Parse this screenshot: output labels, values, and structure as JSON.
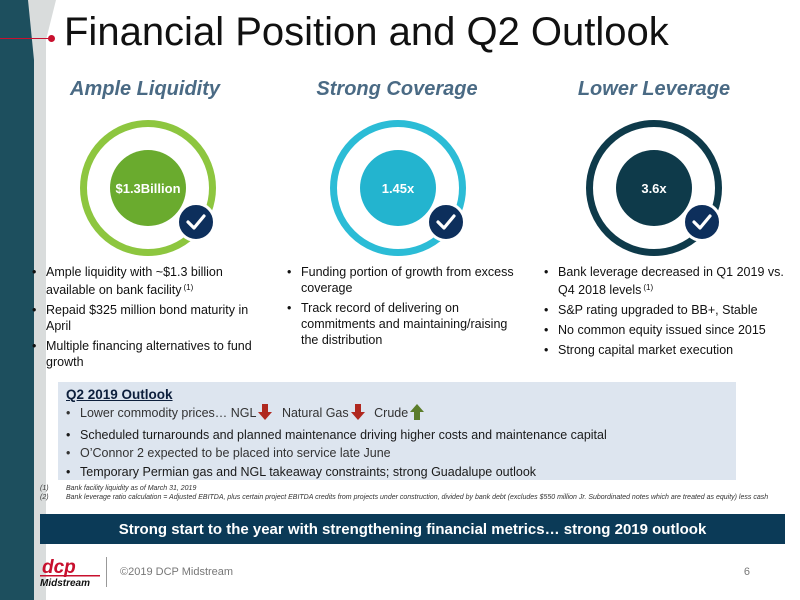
{
  "title": "Financial Position and Q2 Outlook",
  "columns": [
    {
      "heading": "Ample Liquidity",
      "value": "$1.3\nBillion",
      "ring_color": "#8dc63f",
      "inner_color": "#6aab2e",
      "bullets": [
        {
          "text": "Ample liquidity with ~$1.3 billion available on bank facility",
          "sup": "(1)"
        },
        {
          "text": "Repaid $325 million bond maturity in April",
          "sup": ""
        },
        {
          "text": "Multiple financing alternatives to fund growth",
          "sup": ""
        }
      ]
    },
    {
      "heading": "Strong Coverage",
      "value": "1.45x",
      "ring_color": "#2bbcd6",
      "inner_color": "#23b4cf",
      "bullets": [
        {
          "text": "Funding portion of growth from excess coverage",
          "sup": ""
        },
        {
          "text": "Track record of delivering on commitments and maintaining/raising the distribution",
          "sup": ""
        }
      ]
    },
    {
      "heading": "Lower Leverage",
      "value": "3.6x",
      "ring_color": "#0e3a4a",
      "inner_color": "#0e3a4a",
      "bullets": [
        {
          "text": "Bank leverage decreased in Q1 2019 vs. Q4 2018 levels",
          "sup": "(1)"
        },
        {
          "text": "S&P rating upgraded to BB+, Stable",
          "sup": ""
        },
        {
          "text": "No common equity issued since 2015",
          "sup": ""
        },
        {
          "text": "Strong capital market execution",
          "sup": ""
        }
      ]
    }
  ],
  "outlook": {
    "title": "Q2 2019 Outlook",
    "commodity_prefix": "Lower commodity prices… NGL",
    "natural_gas": "Natural Gas",
    "crude": "Crude",
    "arrow_down_color": "#b0281f",
    "arrow_up_color": "#5b7d2a",
    "items": [
      "Scheduled turnarounds and planned maintenance driving higher costs and maintenance capital",
      "O’Connor 2 expected to be placed into service late June",
      "Temporary Permian gas and NGL takeaway constraints; strong Guadalupe outlook"
    ]
  },
  "footnotes": [
    {
      "num": "(1)",
      "text": "Bank facility liquidity as of March 31, 2019"
    },
    {
      "num": "(2)",
      "text": "Bank leverage ratio calculation = Adjusted EBITDA, plus certain project EBITDA credits from projects under construction, divided by bank debt (excludes $550 million Jr. Subordinated notes which are treated as equity) less cash"
    }
  ],
  "banner": "Strong start to the year with strengthening financial metrics… strong 2019 outlook",
  "logo": {
    "top": "dcp",
    "bottom": "Midstream"
  },
  "copyright": "©2019 DCP Midstream",
  "page_number": "6",
  "colors": {
    "navy": "#0d2f5c",
    "banner": "#0b3a57",
    "teal_dark": "#1d4f5e",
    "accent_red": "#c8102e"
  }
}
